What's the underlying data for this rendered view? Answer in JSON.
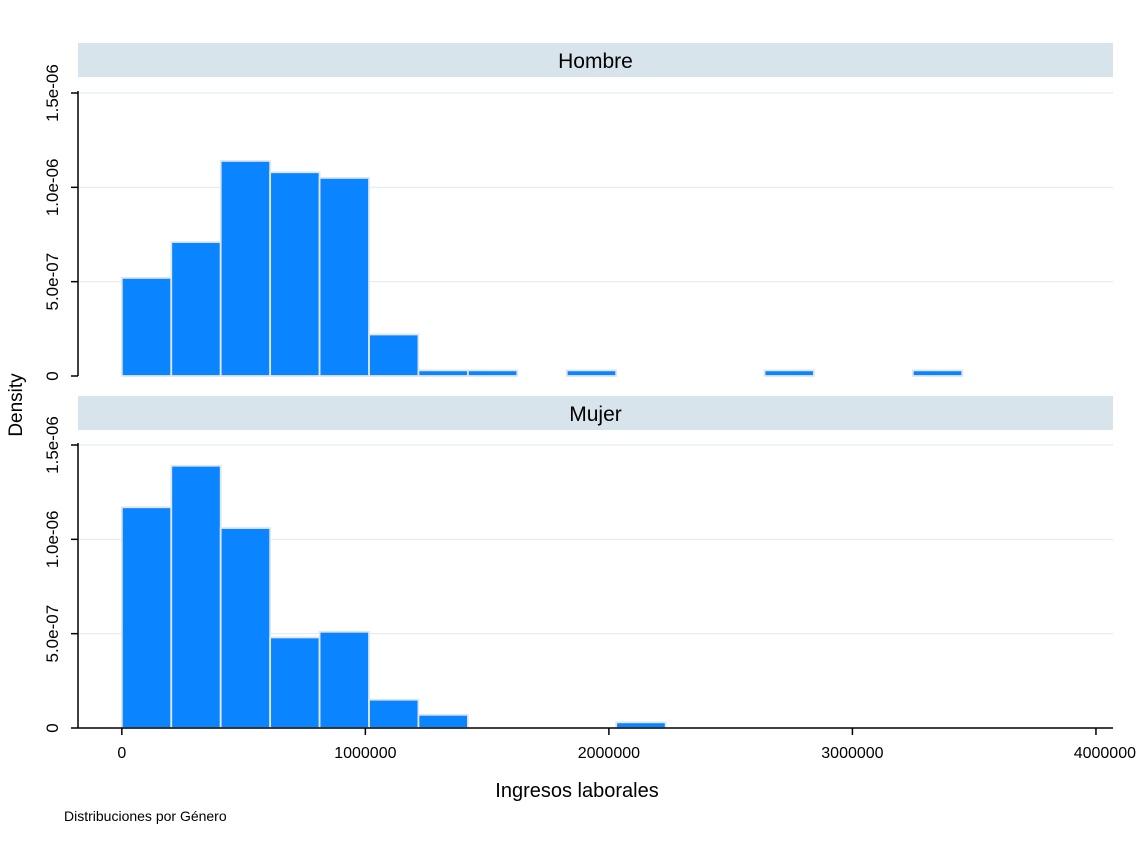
{
  "chart_data": {
    "type": "bar",
    "subtype": "faceted-histogram",
    "ylabel": "Density",
    "xlabel": "Ingresos laborales",
    "note": "Distribuciones por Género",
    "x_ticks": [
      0,
      1000000,
      2000000,
      3000000,
      4000000
    ],
    "x_tick_labels": [
      "0",
      "1000000",
      "2000000",
      "3000000",
      "4000000"
    ],
    "xlim": [
      -180000,
      4070000
    ],
    "ylim": [
      0,
      1.5e-06
    ],
    "y_ticks": [
      0,
      5e-07,
      1e-06,
      1.5e-06
    ],
    "y_tick_labels": [
      "0",
      "5.0e-07",
      "1.0e-06",
      "1.5e-06"
    ],
    "bin_width": 203000,
    "grid": true,
    "colors": {
      "bar": "#0a84ff",
      "bar_edge": "#dfe6ee",
      "strip": "#d8e4ec",
      "grid": "#e3ecf2"
    },
    "panels": [
      {
        "name": "Hombre",
        "bins": [
          {
            "x0": 0,
            "density": 5.2e-07
          },
          {
            "x0": 203000,
            "density": 7.1e-07
          },
          {
            "x0": 406000,
            "density": 1.14e-06
          },
          {
            "x0": 609000,
            "density": 1.08e-06
          },
          {
            "x0": 812000,
            "density": 1.05e-06
          },
          {
            "x0": 1015000,
            "density": 2.2e-07
          },
          {
            "x0": 1218000,
            "density": 3e-08
          },
          {
            "x0": 1421000,
            "density": 3e-08
          },
          {
            "x0": 1827000,
            "density": 3e-08
          },
          {
            "x0": 2639000,
            "density": 3e-08
          },
          {
            "x0": 3248000,
            "density": 3e-08
          }
        ]
      },
      {
        "name": "Mujer",
        "bins": [
          {
            "x0": 0,
            "density": 1.17e-06
          },
          {
            "x0": 203000,
            "density": 1.39e-06
          },
          {
            "x0": 406000,
            "density": 1.06e-06
          },
          {
            "x0": 609000,
            "density": 4.8e-07
          },
          {
            "x0": 812000,
            "density": 5.1e-07
          },
          {
            "x0": 1015000,
            "density": 1.5e-07
          },
          {
            "x0": 1218000,
            "density": 7e-08
          },
          {
            "x0": 2030000,
            "density": 3e-08
          }
        ]
      }
    ]
  }
}
